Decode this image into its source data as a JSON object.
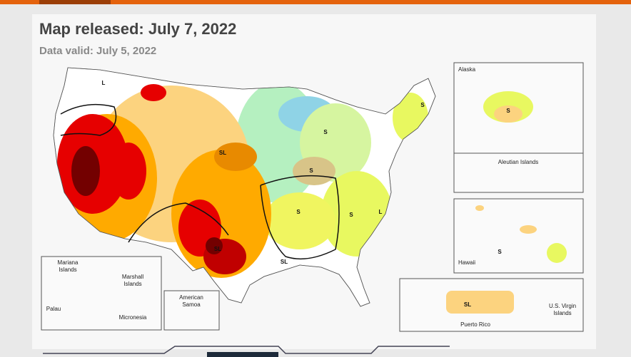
{
  "header": {
    "title": "Map released: July 7, 2022",
    "subtitle": "Data valid: July 5, 2022"
  },
  "insets": {
    "alaska": "Alaska",
    "aleutian": "Aleutian Islands",
    "hawaii": "Hawaii",
    "puerto_rico": "Puerto Rico",
    "virgin_islands": [
      "U.S. Virgin",
      "Islands"
    ],
    "mariana": [
      "Mariana",
      "Islands"
    ],
    "marshall": [
      "Marshall",
      "Islands"
    ],
    "palau": "Palau",
    "micronesia": "Micronesia",
    "samoa": [
      "American",
      "Samoa"
    ]
  },
  "impact_labels": [
    "L",
    "SL",
    "S",
    "S",
    "S",
    "S",
    "L",
    "SL",
    "SL",
    "S",
    "S",
    "S",
    "SL"
  ]
}
